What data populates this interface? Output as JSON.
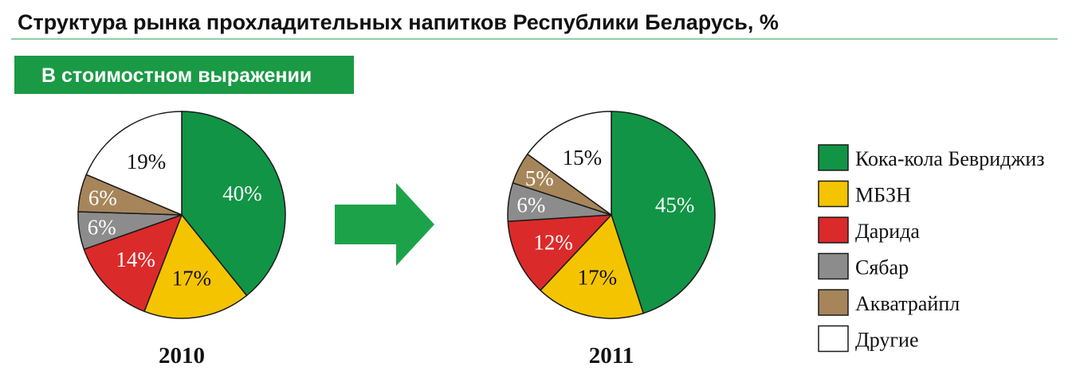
{
  "header": {
    "title": "Структура рынка прохладительных напитков Республики Беларусь, %",
    "badge": "В стоимостном выражении"
  },
  "colors": {
    "accent_green": "#1a9a45",
    "rule_green": "#8fcfa0",
    "arrow_green": "#1ca34a"
  },
  "chart_data": [
    {
      "type": "pie",
      "label": "2010",
      "categories": [
        "Кока-кола Бевриджиз",
        "МБЗН",
        "Дарида",
        "Сябар",
        "Акватрайпл",
        "Другие"
      ],
      "values": [
        40,
        17,
        14,
        6,
        6,
        19
      ],
      "value_labels": [
        "40%",
        "17%",
        "14%",
        "6%",
        "6%",
        "19%"
      ]
    },
    {
      "type": "pie",
      "label": "2011",
      "categories": [
        "Кока-кола Бевриджиз",
        "МБЗН",
        "Дарида",
        "Сябар",
        "Акватрайпл",
        "Другие"
      ],
      "values": [
        45,
        17,
        12,
        6,
        5,
        15
      ],
      "value_labels": [
        "45%",
        "17%",
        "12%",
        "6%",
        "5%",
        "15%"
      ]
    }
  ],
  "legend": [
    {
      "name": "Кока-кола Бевриджиз",
      "color": "#119446"
    },
    {
      "name": "МБЗН",
      "color": "#f5c400"
    },
    {
      "name": "Дарида",
      "color": "#db2a2a"
    },
    {
      "name": "Сябар",
      "color": "#8c8c8c"
    },
    {
      "name": "Акватрайпл",
      "color": "#a7855a"
    },
    {
      "name": "Другие",
      "color": "#ffffff"
    }
  ],
  "icons": [
    "right-arrow-icon"
  ]
}
